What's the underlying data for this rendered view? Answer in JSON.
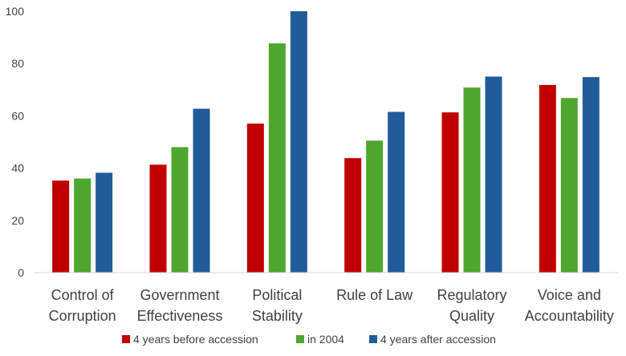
{
  "chart_data": {
    "type": "bar",
    "categories": [
      [
        "Control of",
        "Corruption"
      ],
      [
        "Government",
        "Effectiveness"
      ],
      [
        "Political",
        "Stability"
      ],
      [
        "Rule of Law"
      ],
      [
        "Regulatory",
        "Quality"
      ],
      [
        "Voice and",
        "Accountability"
      ]
    ],
    "series": [
      {
        "name": "4 years before accession",
        "color": "#c00000",
        "values": [
          35.2,
          41.3,
          57.0,
          43.8,
          61.3,
          71.8
        ]
      },
      {
        "name": "in 2004",
        "color": "#4ea72e",
        "values": [
          36.0,
          48.0,
          87.7,
          50.5,
          70.8,
          66.8
        ]
      },
      {
        "name": "4 years after accession",
        "color": "#1f5c99",
        "values": [
          38.2,
          62.7,
          100.0,
          61.5,
          75.0,
          74.8
        ]
      }
    ],
    "yticks": [
      0,
      20,
      40,
      60,
      80,
      100
    ],
    "ylim": [
      0,
      100
    ],
    "grid": false,
    "legend_position": "bottom"
  }
}
